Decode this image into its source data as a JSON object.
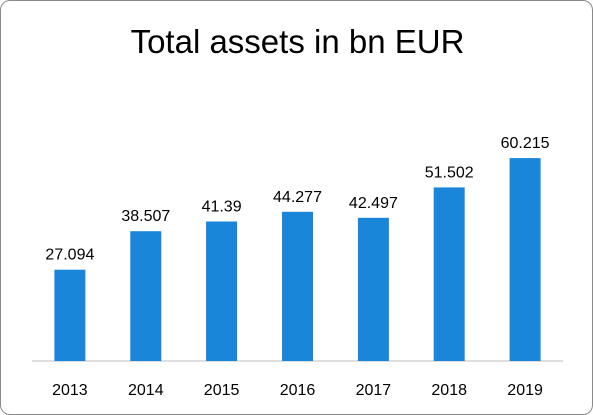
{
  "chart_data": {
    "type": "bar",
    "title": "Total assets in bn EUR",
    "categories": [
      "2013",
      "2014",
      "2015",
      "2016",
      "2017",
      "2018",
      "2019"
    ],
    "values": [
      27.094,
      38.507,
      41.39,
      44.277,
      42.497,
      51.502,
      60.215
    ],
    "data_labels": [
      "27.094",
      "38.507",
      "41.39",
      "44.277",
      "42.497",
      "51.502",
      "60.215"
    ],
    "ylim": [
      0,
      70
    ],
    "grid": false,
    "legend": "none",
    "bar_color": "#1a86d9"
  }
}
